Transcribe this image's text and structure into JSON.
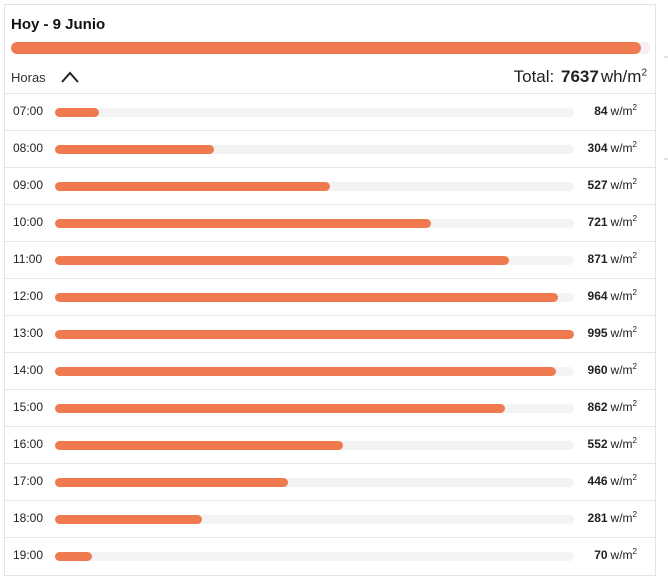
{
  "header": {
    "title": "Hoy - 9 Junio",
    "total_progress": 0.985
  },
  "toolbar": {
    "hours_label": "Horas",
    "toggle_icon": "chevron-up-icon",
    "total_label": "Total:",
    "total_value": "7637",
    "total_unit": "wh/m",
    "total_unit_sup": "2"
  },
  "rows": {
    "unit": "w/m",
    "unit_sup": "2",
    "max_value": 995,
    "items": [
      {
        "time": "07:00",
        "value": "84"
      },
      {
        "time": "08:00",
        "value": "304"
      },
      {
        "time": "09:00",
        "value": "527"
      },
      {
        "time": "10:00",
        "value": "721"
      },
      {
        "time": "11:00",
        "value": "871"
      },
      {
        "time": "12:00",
        "value": "964"
      },
      {
        "time": "13:00",
        "value": "995"
      },
      {
        "time": "14:00",
        "value": "960"
      },
      {
        "time": "15:00",
        "value": "862"
      },
      {
        "time": "16:00",
        "value": "552"
      },
      {
        "time": "17:00",
        "value": "446"
      },
      {
        "time": "18:00",
        "value": "281"
      },
      {
        "time": "19:00",
        "value": "70"
      }
    ]
  },
  "colors": {
    "accent": "#f07a4f",
    "track": "#f3f3f3"
  }
}
